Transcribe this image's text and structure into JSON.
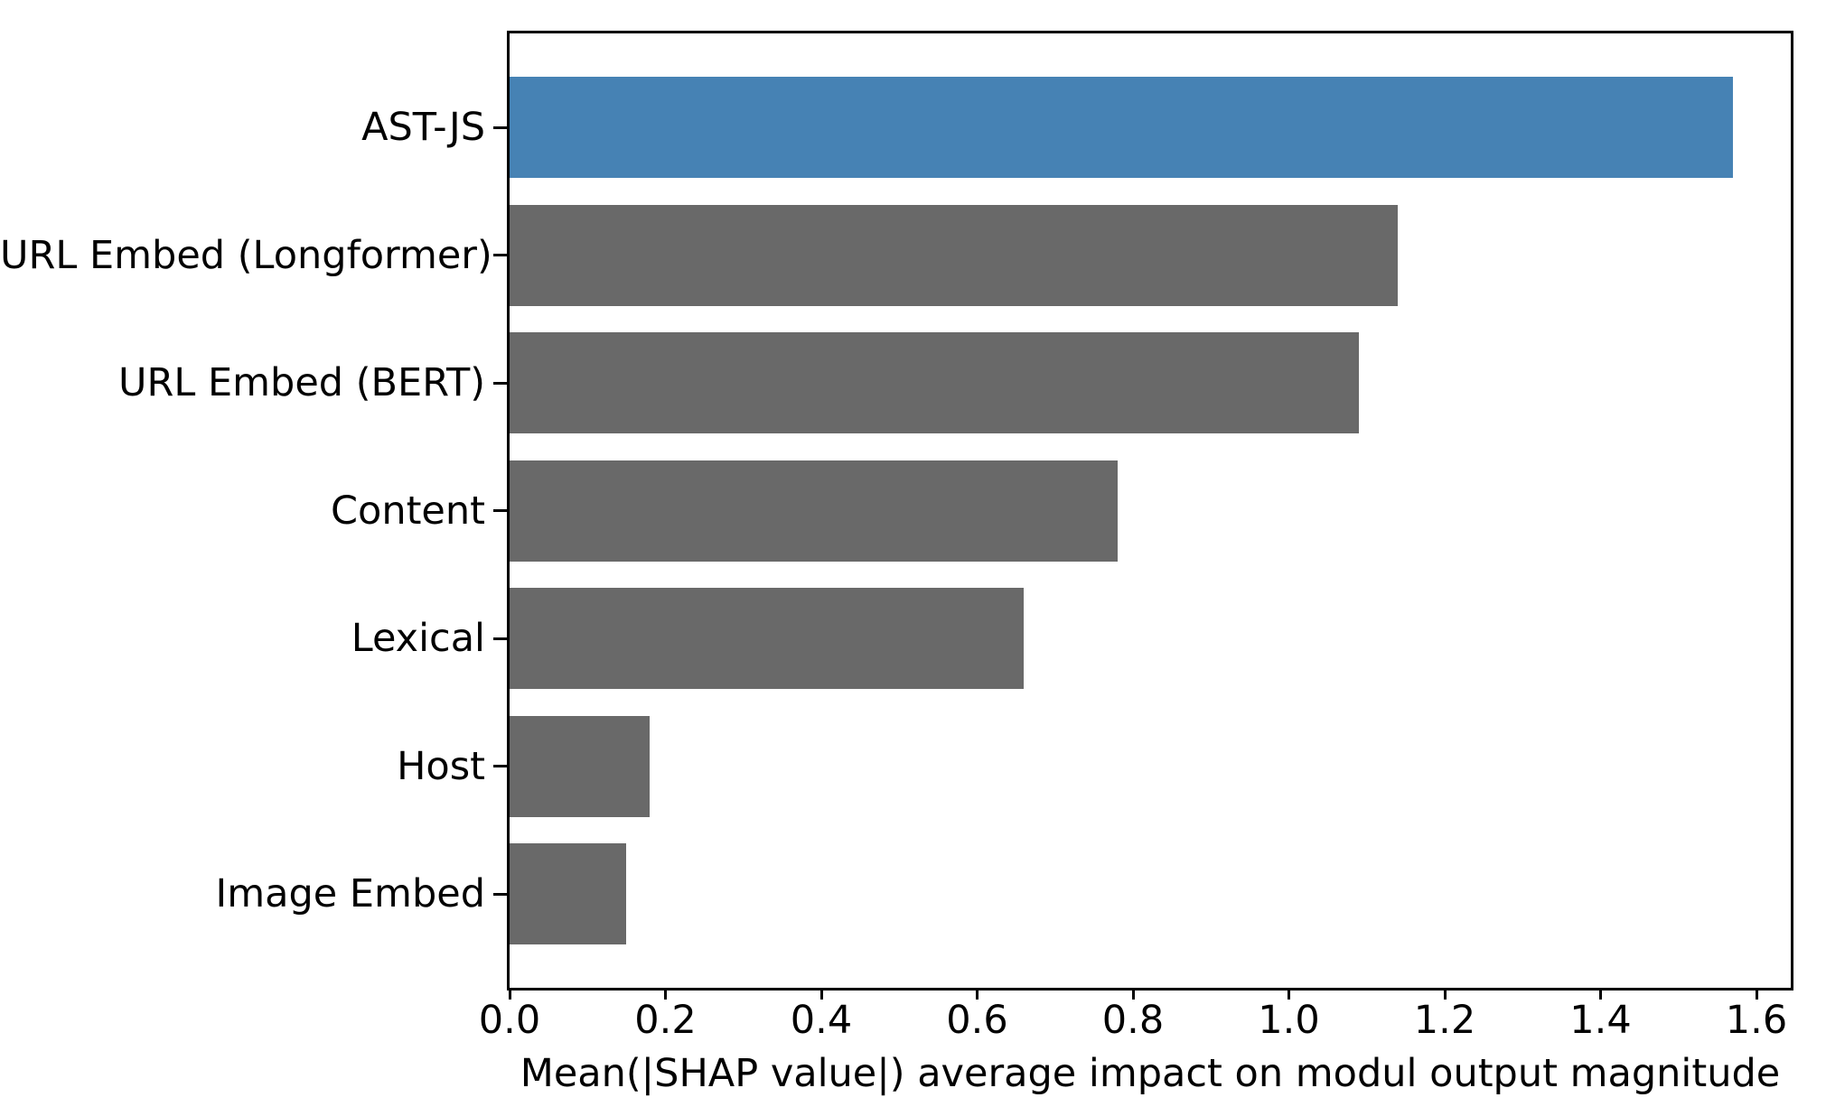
{
  "figure": {
    "background_color": "#ffffff",
    "text_color": "#000000",
    "axis_color": "#000000"
  },
  "chart_data": {
    "type": "bar",
    "orientation": "horizontal",
    "title": "",
    "xlabel": "Mean(|SHAP value|) average impact on modul output magnitude",
    "ylabel": "",
    "categories": [
      "AST-JS",
      "URL Embed (Longformer)",
      "URL Embed (BERT)",
      "Content",
      "Lexical",
      "Host",
      "Image Embed"
    ],
    "values": [
      1.57,
      1.14,
      1.09,
      0.78,
      0.66,
      0.18,
      0.15
    ],
    "bar_colors": [
      "#4682b4",
      "#696969",
      "#696969",
      "#696969",
      "#696969",
      "#696969",
      "#696969"
    ],
    "highlight_color": "#4682b4",
    "default_bar_color": "#696969",
    "x_ticks": [
      "0.0",
      "0.2",
      "0.4",
      "0.6",
      "0.8",
      "1.0",
      "1.2",
      "1.4",
      "1.6"
    ],
    "x_tick_values": [
      0.0,
      0.2,
      0.4,
      0.6,
      0.8,
      1.0,
      1.2,
      1.4,
      1.6
    ],
    "xlim": [
      0.0,
      1.64
    ],
    "grid": false,
    "legend_position": "none"
  }
}
